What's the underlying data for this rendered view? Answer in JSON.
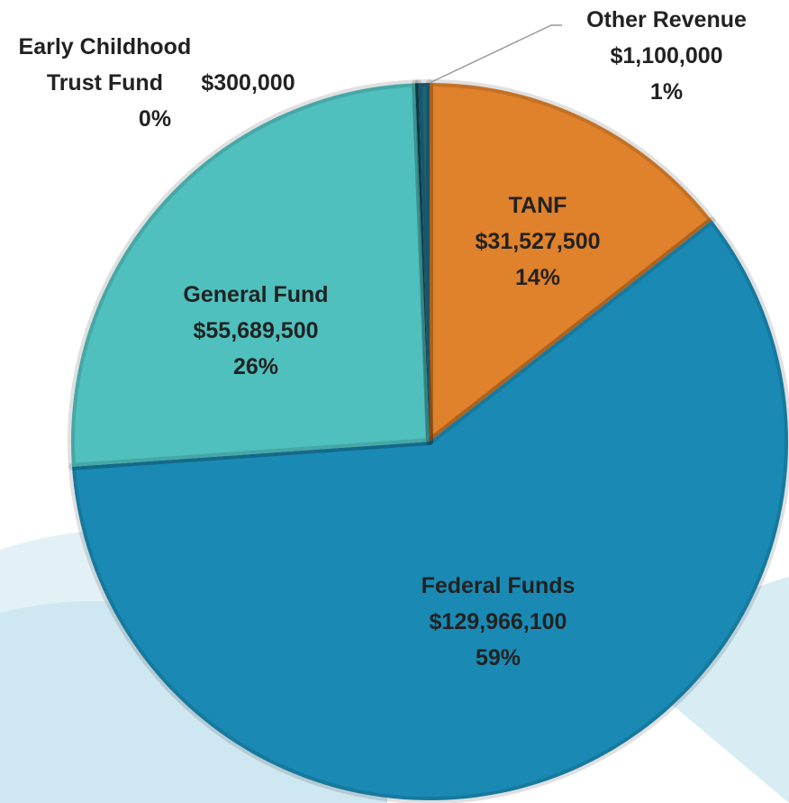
{
  "chart_data": {
    "type": "pie",
    "categories": [
      "TANF",
      "Federal Funds",
      "General Fund",
      "Early Childhood Trust Fund",
      "Other Revenue"
    ],
    "values": [
      31527500,
      129966100,
      55689500,
      300000,
      1100000
    ],
    "value_labels": [
      "$31,527,500",
      "$129,966,100",
      "$55,689,500",
      "$300,000",
      "$1,100,000"
    ],
    "percent_labels": [
      "14%",
      "59%",
      "26%",
      "0%",
      "1%"
    ],
    "colors": [
      "#e0812b",
      "#1a8ab4",
      "#4fc0bd",
      "#0f4a5c",
      "#1c6478"
    ]
  }
}
